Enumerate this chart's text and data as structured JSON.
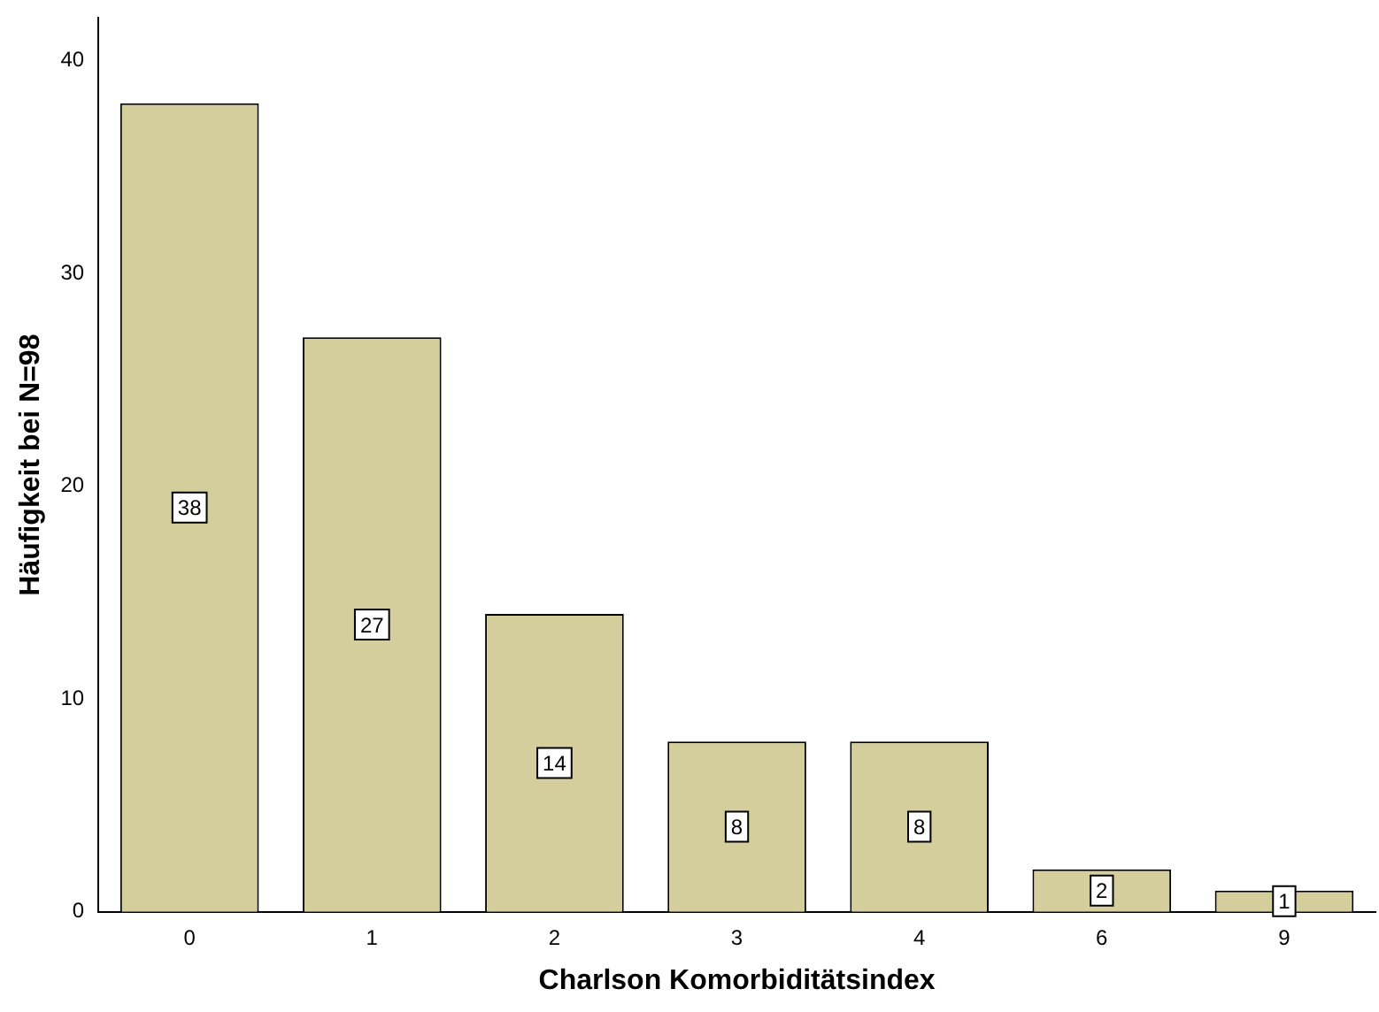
{
  "chart_data": {
    "type": "bar",
    "xlabel": "Charlson Komorbiditätsindex",
    "ylabel": "Häufigkeit bei N=98",
    "categories": [
      "0",
      "1",
      "2",
      "3",
      "4",
      "6",
      "9"
    ],
    "values": [
      38,
      27,
      14,
      8,
      8,
      2,
      1
    ],
    "color": "#d3ce9b",
    "ylim": [
      0,
      42
    ],
    "yticks": [
      0,
      10,
      20,
      30,
      40
    ],
    "grid": false,
    "legend": false,
    "data_labels": true
  }
}
